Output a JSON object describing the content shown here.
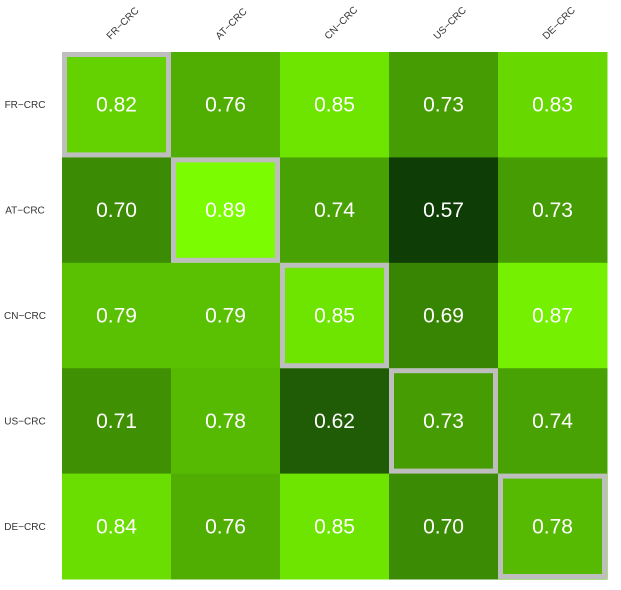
{
  "chart_data": {
    "type": "heatmap",
    "columns": [
      "FR−CRC",
      "AT−CRC",
      "CN−CRC",
      "US−CRC",
      "DE−CRC"
    ],
    "rows": [
      "FR−CRC",
      "AT−CRC",
      "CN−CRC",
      "US−CRC",
      "DE−CRC"
    ],
    "values": [
      [
        0.82,
        0.76,
        0.85,
        0.73,
        0.83
      ],
      [
        0.7,
        0.89,
        0.74,
        0.57,
        0.73
      ],
      [
        0.79,
        0.79,
        0.85,
        0.69,
        0.87
      ],
      [
        0.71,
        0.78,
        0.62,
        0.73,
        0.74
      ],
      [
        0.84,
        0.76,
        0.85,
        0.7,
        0.78
      ]
    ],
    "value_labels": [
      [
        "0.82",
        "0.76",
        "0.85",
        "0.73",
        "0.83"
      ],
      [
        "0.70",
        "0.89",
        "0.74",
        "0.57",
        "0.73"
      ],
      [
        "0.79",
        "0.79",
        "0.85",
        "0.69",
        "0.87"
      ],
      [
        "0.71",
        "0.78",
        "0.62",
        "0.73",
        "0.74"
      ],
      [
        "0.84",
        "0.76",
        "0.85",
        "0.70",
        "0.78"
      ]
    ],
    "color_scale": {
      "min": 0.57,
      "max": 0.89,
      "low_color": "#0f3d06",
      "high_color": "#7cfc00"
    },
    "highlight": "diagonal",
    "highlight_color": "#bebebe",
    "label_color": "#ffffff",
    "legend": "none",
    "grid": false
  }
}
